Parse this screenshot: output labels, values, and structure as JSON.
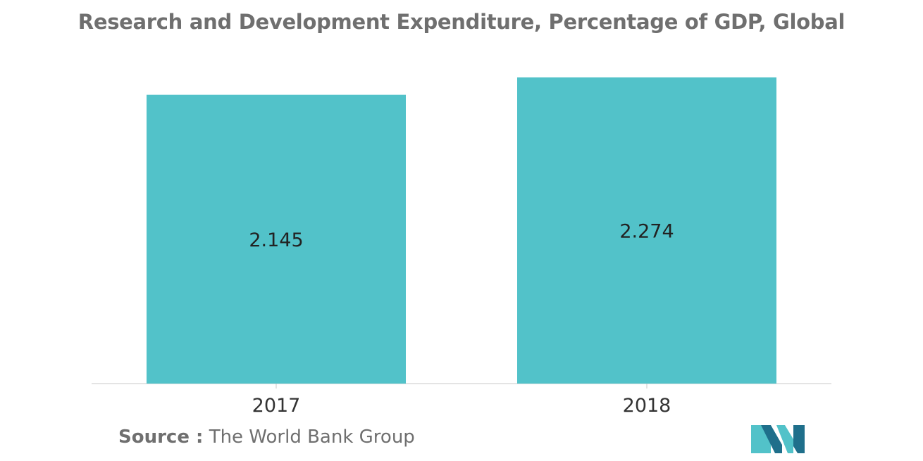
{
  "chart_data": {
    "type": "bar",
    "title": "Research and Development Expenditure, Percentage of GDP, Global",
    "categories": [
      "2017",
      "2018"
    ],
    "values": [
      2.145,
      2.274
    ],
    "value_labels": [
      "2.145",
      "2.274"
    ],
    "xlabel": "",
    "ylabel": "",
    "ylim": [
      0,
      2.274
    ],
    "grid": false,
    "legend": "none"
  },
  "source": {
    "label": "Source :",
    "text": "The World Bank Group"
  },
  "colors": {
    "bar": "#52c2c9",
    "title": "#6f6f6f",
    "axis": "#c8c8c8",
    "logo_dark": "#1f6f8b",
    "logo_light": "#52c2c9"
  },
  "logo": {
    "icon": "mordor-logo-icon"
  }
}
